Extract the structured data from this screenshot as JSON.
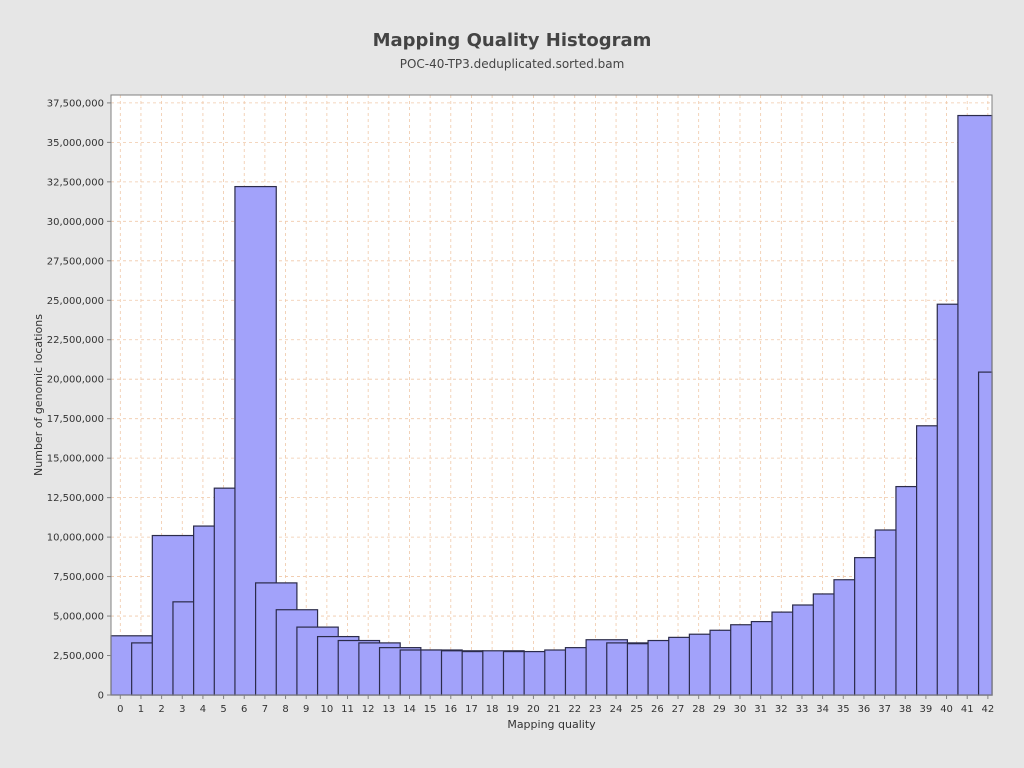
{
  "chart_data": {
    "type": "bar",
    "title": "Mapping Quality Histogram",
    "subtitle": "POC-40-TP3.deduplicated.sorted.bam",
    "xlabel": "Mapping quality",
    "ylabel": "Number of genomic locations",
    "categories": [
      "0",
      "1",
      "2",
      "3",
      "4",
      "5",
      "6",
      "7",
      "8",
      "9",
      "10",
      "11",
      "12",
      "13",
      "14",
      "15",
      "16",
      "17",
      "18",
      "19",
      "20",
      "21",
      "22",
      "23",
      "24",
      "25",
      "26",
      "27",
      "28",
      "29",
      "30",
      "31",
      "32",
      "33",
      "34",
      "35",
      "36",
      "37",
      "38",
      "39",
      "40",
      "41",
      "42"
    ],
    "x": [
      0,
      1,
      2,
      3,
      4,
      5,
      6,
      7,
      8,
      9,
      10,
      11,
      12,
      13,
      14,
      15,
      16,
      17,
      18,
      19,
      20,
      21,
      22,
      23,
      24,
      25,
      26,
      27,
      28,
      29,
      30,
      31,
      32,
      33,
      34,
      35,
      36,
      37,
      38,
      39,
      40,
      41,
      42
    ],
    "values": [
      3750000,
      3300000,
      10100000,
      5900000,
      10700000,
      13100000,
      32200000,
      7100000,
      5400000,
      4300000,
      3700000,
      3450000,
      3300000,
      3000000,
      2850000,
      2850000,
      2800000,
      2750000,
      2800000,
      2750000,
      2750000,
      2850000,
      3000000,
      3500000,
      3300000,
      3250000,
      3450000,
      3650000,
      3850000,
      4100000,
      4450000,
      4650000,
      5250000,
      5700000,
      6400000,
      7300000,
      8700000,
      10450000,
      13200000,
      17050000,
      24750000,
      36700000,
      20450000
    ],
    "xlim": [
      -0.45,
      42.2
    ],
    "ylim": [
      0,
      38000000
    ],
    "y_ticks": [
      0,
      2500000,
      5000000,
      7500000,
      10000000,
      12500000,
      15000000,
      17500000,
      20000000,
      22500000,
      25000000,
      27500000,
      30000000,
      32500000,
      35000000,
      37500000
    ],
    "y_tick_labels": [
      "0",
      "2,500,000",
      "5,000,000",
      "7,500,000",
      "10,000,000",
      "12,500,000",
      "15,000,000",
      "17,500,000",
      "20,000,000",
      "22,500,000",
      "25,000,000",
      "27,500,000",
      "30,000,000",
      "32,500,000",
      "35,000,000",
      "37,500,000"
    ],
    "grid": true,
    "colors": {
      "bar_fill": "#a2a2fa",
      "bar_stroke": "#2b2b4a",
      "grid": "#f0c8a8",
      "plot_bg": "#ffffff",
      "page_bg": "#e6e6e6",
      "axis": "#808080"
    }
  }
}
